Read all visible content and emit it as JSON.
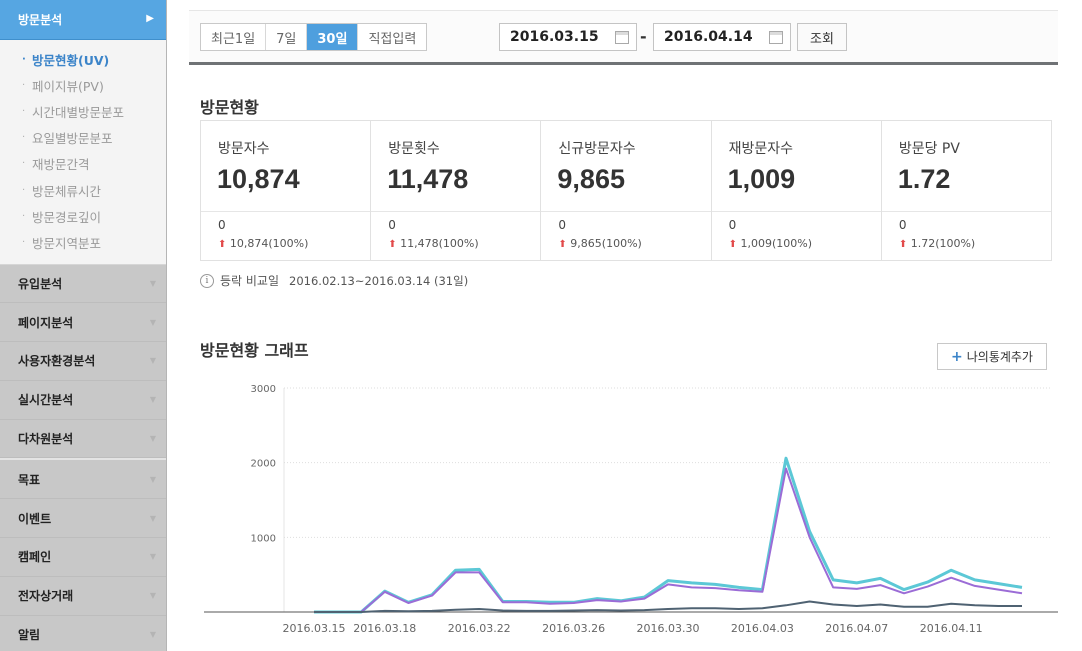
{
  "sidebar": {
    "header": "방문분석",
    "subitems": [
      {
        "label": "방문현황(UV)",
        "active": true
      },
      {
        "label": "페이지뷰(PV)"
      },
      {
        "label": "시간대별방문분포"
      },
      {
        "label": "요일별방문분포"
      },
      {
        "label": "재방문간격"
      },
      {
        "label": "방문체류시간"
      },
      {
        "label": "방문경로깊이"
      },
      {
        "label": "방문지역분포"
      }
    ],
    "menu_group1": [
      "유입분석",
      "페이지분석",
      "사용자환경분석",
      "실시간분석",
      "다차원분석"
    ],
    "menu_group2": [
      "목표",
      "이벤트",
      "캠페인",
      "전자상거래",
      "알림"
    ]
  },
  "toolbar": {
    "periods": [
      "최근1일",
      "7일",
      "30일",
      "직접입력"
    ],
    "active_period": "30일",
    "start_date": "2016.03.15",
    "end_date": "2016.04.14",
    "separator": "-",
    "query_label": "조회"
  },
  "summary": {
    "title": "방문현황",
    "stats": [
      {
        "label": "방문자수",
        "value": "10,874",
        "compare": "0",
        "change": "10,874(100%)"
      },
      {
        "label": "방문횟수",
        "value": "11,478",
        "compare": "0",
        "change": "11,478(100%)"
      },
      {
        "label": "신규방문자수",
        "value": "9,865",
        "compare": "0",
        "change": "9,865(100%)"
      },
      {
        "label": "재방문자수",
        "value": "1,009",
        "compare": "0",
        "change": "1,009(100%)"
      },
      {
        "label": "방문당 PV",
        "value": "1.72",
        "compare": "0",
        "change": "1.72(100%)"
      }
    ],
    "compare_label": "등락 비교일",
    "compare_period": "2016.02.13~2016.03.14 (31일)"
  },
  "graph": {
    "title": "방문현황 그래프",
    "add_button": "나의통계추가",
    "colors": {
      "cyan": "#5cc8d6",
      "purple": "#9b6cd6",
      "dark": "#4f6272",
      "grid": "#dedede"
    }
  },
  "chart_data": {
    "type": "line",
    "ylim": [
      0,
      3000
    ],
    "yticks": [
      "3000",
      "2000",
      "1000"
    ],
    "xtick_labels": [
      "2016.03.15",
      "2016.03.18",
      "2016.03.22",
      "2016.03.26",
      "2016.03.30",
      "2016.04.03",
      "2016.04.07",
      "2016.04.11"
    ],
    "x": [
      "2016.03.15",
      "2016.03.16",
      "2016.03.17",
      "2016.03.18",
      "2016.03.19",
      "2016.03.20",
      "2016.03.21",
      "2016.03.22",
      "2016.03.23",
      "2016.03.24",
      "2016.03.25",
      "2016.03.26",
      "2016.03.27",
      "2016.03.28",
      "2016.03.29",
      "2016.03.30",
      "2016.03.31",
      "2016.04.01",
      "2016.04.02",
      "2016.04.03",
      "2016.04.04",
      "2016.04.05",
      "2016.04.06",
      "2016.04.07",
      "2016.04.08",
      "2016.04.09",
      "2016.04.10",
      "2016.04.11",
      "2016.04.12",
      "2016.04.13",
      "2016.04.14"
    ],
    "series": [
      {
        "color": "#5cc8d6",
        "values": [
          0,
          0,
          0,
          280,
          130,
          230,
          560,
          570,
          140,
          140,
          130,
          130,
          180,
          150,
          200,
          420,
          390,
          370,
          330,
          300,
          2060,
          1080,
          430,
          390,
          450,
          300,
          400,
          560,
          430,
          380,
          330
        ]
      },
      {
        "color": "#9b6cd6",
        "values": [
          0,
          0,
          0,
          270,
          120,
          220,
          530,
          530,
          130,
          130,
          110,
          120,
          160,
          140,
          180,
          370,
          330,
          320,
          290,
          270,
          1920,
          1000,
          330,
          310,
          360,
          250,
          340,
          460,
          350,
          300,
          250
        ]
      },
      {
        "color": "#4f6272",
        "values": [
          0,
          0,
          0,
          15,
          10,
          15,
          30,
          40,
          20,
          15,
          15,
          20,
          25,
          20,
          25,
          40,
          50,
          50,
          40,
          50,
          90,
          140,
          100,
          80,
          100,
          70,
          70,
          110,
          90,
          80,
          80
        ]
      }
    ]
  }
}
